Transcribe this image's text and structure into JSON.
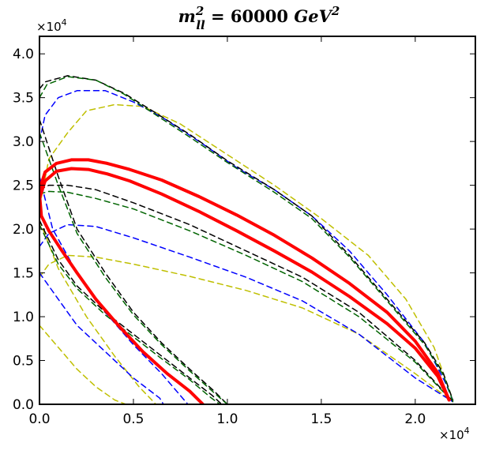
{
  "chart_data": {
    "type": "line",
    "title": "m_ll^2 = 60000 GeV^2",
    "title_parts": {
      "m": "m",
      "sup": "2",
      "sub": "ll",
      "eq": " = 60000 ",
      "unit": "GeV",
      "unit_sup": "2"
    },
    "xlabel": "",
    "ylabel": "",
    "xlim": [
      0,
      23200
    ],
    "ylim": [
      0,
      42000
    ],
    "grid": false,
    "x_scale_label": "×10",
    "x_scale_exp": "4",
    "y_scale_label": "×10",
    "y_scale_exp": "4",
    "x_ticks": [
      {
        "value": 0,
        "label": "0.0"
      },
      {
        "value": 5000,
        "label": "0.5"
      },
      {
        "value": 10000,
        "label": "1.0"
      },
      {
        "value": 15000,
        "label": "1.5"
      },
      {
        "value": 20000,
        "label": "2.0"
      }
    ],
    "y_ticks": [
      {
        "value": 0,
        "label": "0.0"
      },
      {
        "value": 5000,
        "label": "0.5"
      },
      {
        "value": 10000,
        "label": "1.0"
      },
      {
        "value": 15000,
        "label": "1.5"
      },
      {
        "value": 20000,
        "label": "2.0"
      },
      {
        "value": 25000,
        "label": "2.5"
      },
      {
        "value": 30000,
        "label": "3.0"
      },
      {
        "value": 35000,
        "label": "3.5"
      },
      {
        "value": 40000,
        "label": "4.0"
      }
    ],
    "series": [
      {
        "name": "yellow-outer-upper",
        "color": "#bfbf00",
        "style": "dashed",
        "width": 1.5,
        "points": [
          [
            0,
            22500
          ],
          [
            500,
            28000
          ],
          [
            1500,
            31000
          ],
          [
            2500,
            33500
          ],
          [
            4000,
            34200
          ],
          [
            5500,
            34000
          ],
          [
            7500,
            32000
          ],
          [
            10000,
            28500
          ],
          [
            12500,
            25000
          ],
          [
            15000,
            21200
          ],
          [
            17500,
            17000
          ],
          [
            19500,
            12000
          ],
          [
            21000,
            6500
          ],
          [
            22000,
            500
          ]
        ]
      },
      {
        "name": "yellow-outer-lower",
        "color": "#bfbf00",
        "style": "dashed",
        "width": 1.5,
        "points": [
          [
            0,
            14500
          ],
          [
            500,
            16000
          ],
          [
            1500,
            17000
          ],
          [
            3000,
            16800
          ],
          [
            5000,
            16000
          ],
          [
            8000,
            14600
          ],
          [
            11000,
            13000
          ],
          [
            14000,
            11000
          ],
          [
            17000,
            8000
          ],
          [
            20000,
            3500
          ],
          [
            22000,
            300
          ]
        ]
      },
      {
        "name": "yellow-left-upper",
        "color": "#bfbf00",
        "style": "dashed",
        "width": 1.5,
        "points": [
          [
            0,
            21000
          ],
          [
            1000,
            15500
          ],
          [
            2500,
            10000
          ],
          [
            4000,
            5500
          ],
          [
            5300,
            2000
          ],
          [
            6200,
            0
          ]
        ]
      },
      {
        "name": "yellow-left-lower",
        "color": "#bfbf00",
        "style": "dashed",
        "width": 1.5,
        "points": [
          [
            0,
            9000
          ],
          [
            1000,
            6500
          ],
          [
            2000,
            4000
          ],
          [
            3000,
            2000
          ],
          [
            4000,
            500
          ],
          [
            4600,
            0
          ]
        ]
      },
      {
        "name": "blue-outer-upper",
        "color": "#0000ff",
        "style": "dashed",
        "width": 1.5,
        "points": [
          [
            0,
            30000
          ],
          [
            300,
            33000
          ],
          [
            1000,
            35000
          ],
          [
            2000,
            35800
          ],
          [
            3500,
            35800
          ],
          [
            5000,
            34500
          ],
          [
            6500,
            32800
          ],
          [
            8500,
            30000
          ],
          [
            10500,
            27000
          ],
          [
            12500,
            24500
          ],
          [
            14500,
            21500
          ],
          [
            16500,
            17500
          ],
          [
            18500,
            12500
          ],
          [
            20500,
            7000
          ],
          [
            21600,
            2500
          ],
          [
            22000,
            500
          ]
        ]
      },
      {
        "name": "blue-outer-lower",
        "color": "#0000ff",
        "style": "dashed",
        "width": 1.5,
        "points": [
          [
            0,
            18000
          ],
          [
            500,
            19500
          ],
          [
            1500,
            20500
          ],
          [
            3000,
            20300
          ],
          [
            5000,
            19000
          ],
          [
            8000,
            16800
          ],
          [
            11000,
            14500
          ],
          [
            14000,
            11800
          ],
          [
            17000,
            8000
          ],
          [
            20000,
            3000
          ],
          [
            22000,
            300
          ]
        ]
      },
      {
        "name": "blue-left-upper",
        "color": "#0000ff",
        "style": "dashed",
        "width": 1.5,
        "points": [
          [
            0,
            26000
          ],
          [
            700,
            20000
          ],
          [
            2000,
            15000
          ],
          [
            3500,
            10500
          ],
          [
            5000,
            6800
          ],
          [
            6500,
            3500
          ],
          [
            7700,
            500
          ],
          [
            7900,
            0
          ]
        ]
      },
      {
        "name": "blue-left-lower",
        "color": "#0000ff",
        "style": "dashed",
        "width": 1.5,
        "points": [
          [
            0,
            15000
          ],
          [
            1000,
            12000
          ],
          [
            2000,
            9000
          ],
          [
            3500,
            6000
          ],
          [
            5000,
            3000
          ],
          [
            6400,
            700
          ],
          [
            6600,
            0
          ]
        ]
      },
      {
        "name": "black-outer-upper",
        "color": "#000000",
        "style": "dashed",
        "width": 1.5,
        "points": [
          [
            0,
            36000
          ],
          [
            300,
            36800
          ],
          [
            1500,
            37500
          ],
          [
            3000,
            37000
          ],
          [
            4500,
            35500
          ],
          [
            6000,
            33500
          ],
          [
            8000,
            30800
          ],
          [
            10000,
            27800
          ],
          [
            12500,
            24500
          ],
          [
            14500,
            21500
          ],
          [
            16500,
            17000
          ],
          [
            18500,
            12000
          ],
          [
            20500,
            7000
          ],
          [
            21500,
            3500
          ],
          [
            22000,
            500
          ]
        ]
      },
      {
        "name": "black-outer-lower",
        "color": "#000000",
        "style": "dashed",
        "width": 1.5,
        "points": [
          [
            0,
            24500
          ],
          [
            500,
            25000
          ],
          [
            1500,
            25000
          ],
          [
            3000,
            24500
          ],
          [
            5000,
            23000
          ],
          [
            8000,
            20500
          ],
          [
            11000,
            17500
          ],
          [
            14000,
            14500
          ],
          [
            17000,
            10500
          ],
          [
            20000,
            5000
          ],
          [
            21500,
            1500
          ],
          [
            22000,
            400
          ]
        ]
      },
      {
        "name": "black-left-upper",
        "color": "#000000",
        "style": "dashed",
        "width": 1.5,
        "points": [
          [
            0,
            32500
          ],
          [
            1000,
            26000
          ],
          [
            2000,
            20000
          ],
          [
            3500,
            15000
          ],
          [
            5000,
            10500
          ],
          [
            6500,
            7000
          ],
          [
            8000,
            4000
          ],
          [
            9300,
            1500
          ],
          [
            10000,
            0
          ]
        ]
      },
      {
        "name": "black-left-lower",
        "color": "#000000",
        "style": "dashed",
        "width": 1.5,
        "points": [
          [
            0,
            21000
          ],
          [
            1000,
            16500
          ],
          [
            2000,
            13500
          ],
          [
            3500,
            10500
          ],
          [
            5000,
            8000
          ],
          [
            6500,
            5500
          ],
          [
            8000,
            3000
          ],
          [
            9200,
            1000
          ],
          [
            9700,
            0
          ]
        ]
      },
      {
        "name": "green-outer-upper",
        "color": "#006400",
        "style": "dashed",
        "width": 1.5,
        "points": [
          [
            0,
            35000
          ],
          [
            400,
            36500
          ],
          [
            1500,
            37400
          ],
          [
            3000,
            37000
          ],
          [
            4500,
            35400
          ],
          [
            6000,
            33300
          ],
          [
            8000,
            30500
          ],
          [
            10000,
            27600
          ],
          [
            12500,
            24200
          ],
          [
            14500,
            21200
          ],
          [
            16500,
            16800
          ],
          [
            18500,
            11800
          ],
          [
            20500,
            6800
          ],
          [
            21500,
            3300
          ],
          [
            22000,
            400
          ]
        ]
      },
      {
        "name": "green-outer-lower",
        "color": "#006400",
        "style": "dashed",
        "width": 1.5,
        "points": [
          [
            0,
            24000
          ],
          [
            500,
            24300
          ],
          [
            1500,
            24200
          ],
          [
            3000,
            23500
          ],
          [
            5000,
            22300
          ],
          [
            8000,
            19800
          ],
          [
            11000,
            17000
          ],
          [
            14000,
            14000
          ],
          [
            17000,
            10000
          ],
          [
            20000,
            4800
          ],
          [
            21500,
            1400
          ],
          [
            22000,
            300
          ]
        ]
      },
      {
        "name": "green-left-upper",
        "color": "#006400",
        "style": "dashed",
        "width": 1.5,
        "points": [
          [
            0,
            31000
          ],
          [
            1000,
            25000
          ],
          [
            2000,
            19500
          ],
          [
            3500,
            14500
          ],
          [
            5000,
            10200
          ],
          [
            6500,
            6800
          ],
          [
            8000,
            3800
          ],
          [
            9300,
            1300
          ],
          [
            10000,
            0
          ]
        ]
      },
      {
        "name": "green-left-lower",
        "color": "#006400",
        "style": "dashed",
        "width": 1.5,
        "points": [
          [
            0,
            20500
          ],
          [
            1000,
            16000
          ],
          [
            2000,
            13200
          ],
          [
            3500,
            10200
          ],
          [
            5000,
            7700
          ],
          [
            6500,
            5200
          ],
          [
            8000,
            2800
          ],
          [
            9100,
            800
          ],
          [
            9600,
            0
          ]
        ]
      },
      {
        "name": "red-outer-upper",
        "color": "#ff0000",
        "style": "solid",
        "width": 4,
        "points": [
          [
            0,
            24500
          ],
          [
            300,
            26500
          ],
          [
            900,
            27500
          ],
          [
            1700,
            27900
          ],
          [
            2600,
            27900
          ],
          [
            3600,
            27500
          ],
          [
            4800,
            26800
          ],
          [
            6500,
            25600
          ],
          [
            8500,
            23700
          ],
          [
            10500,
            21600
          ],
          [
            12500,
            19300
          ],
          [
            14500,
            16700
          ],
          [
            16500,
            13800
          ],
          [
            18500,
            10500
          ],
          [
            20000,
            7200
          ],
          [
            21200,
            3600
          ],
          [
            21800,
            500
          ]
        ]
      },
      {
        "name": "red-outer-lower",
        "color": "#ff0000",
        "style": "solid",
        "width": 4,
        "points": [
          [
            0,
            23500
          ],
          [
            300,
            25500
          ],
          [
            900,
            26600
          ],
          [
            1700,
            26900
          ],
          [
            2600,
            26800
          ],
          [
            3600,
            26300
          ],
          [
            4800,
            25500
          ],
          [
            6500,
            24000
          ],
          [
            8500,
            22000
          ],
          [
            10500,
            19800
          ],
          [
            12500,
            17500
          ],
          [
            14500,
            15100
          ],
          [
            16500,
            12300
          ],
          [
            18500,
            9200
          ],
          [
            20000,
            6400
          ],
          [
            21200,
            3200
          ],
          [
            21800,
            500
          ]
        ]
      },
      {
        "name": "red-left",
        "color": "#ff0000",
        "style": "solid",
        "width": 4,
        "points": [
          [
            0,
            24000
          ],
          [
            100,
            21500
          ],
          [
            500,
            19800
          ],
          [
            1200,
            17500
          ],
          [
            2000,
            15000
          ],
          [
            3000,
            12000
          ],
          [
            4200,
            9000
          ],
          [
            5500,
            6000
          ],
          [
            6800,
            3500
          ],
          [
            8000,
            1500
          ],
          [
            8700,
            0
          ]
        ]
      }
    ]
  }
}
